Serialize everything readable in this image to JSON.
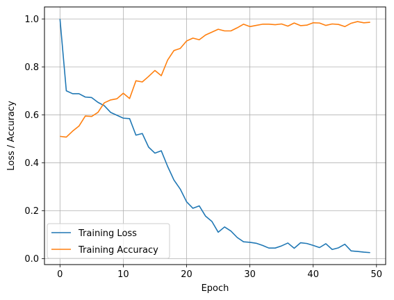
{
  "chart_data": {
    "type": "line",
    "title": "",
    "xlabel": "Epoch",
    "ylabel": "Loss / Accuracy",
    "xlim": [
      -2.45,
      51.45
    ],
    "ylim": [
      -0.025,
      1.05
    ],
    "xticks": [
      0,
      10,
      20,
      30,
      40,
      50
    ],
    "yticks": [
      0.0,
      0.2,
      0.4,
      0.6,
      0.8,
      1.0
    ],
    "xtick_labels": [
      "0",
      "10",
      "20",
      "30",
      "40",
      "50"
    ],
    "ytick_labels": [
      "0.0",
      "0.2",
      "0.4",
      "0.6",
      "0.8",
      "1.0"
    ],
    "grid": true,
    "legend_position": "lower-left",
    "x": [
      0,
      1,
      2,
      3,
      4,
      5,
      6,
      7,
      8,
      9,
      10,
      11,
      12,
      13,
      14,
      15,
      16,
      17,
      18,
      19,
      20,
      21,
      22,
      23,
      24,
      25,
      26,
      27,
      28,
      29,
      30,
      31,
      32,
      33,
      34,
      35,
      36,
      37,
      38,
      39,
      40,
      41,
      42,
      43,
      44,
      45,
      46,
      47,
      48,
      49
    ],
    "series": [
      {
        "name": "Training Loss",
        "color": "#1f77b4",
        "values": [
          1.0,
          0.7,
          0.688,
          0.688,
          0.674,
          0.672,
          0.652,
          0.638,
          0.61,
          0.598,
          0.586,
          0.584,
          0.515,
          0.522,
          0.465,
          0.44,
          0.45,
          0.385,
          0.328,
          0.29,
          0.237,
          0.21,
          0.22,
          0.177,
          0.155,
          0.11,
          0.132,
          0.115,
          0.088,
          0.07,
          0.068,
          0.064,
          0.055,
          0.044,
          0.044,
          0.053,
          0.065,
          0.043,
          0.066,
          0.063,
          0.055,
          0.046,
          0.062,
          0.038,
          0.045,
          0.06,
          0.032,
          0.03,
          0.027,
          0.025
        ]
      },
      {
        "name": "Training Accuracy",
        "color": "#ff7f0e",
        "values": [
          0.51,
          0.507,
          0.532,
          0.553,
          0.595,
          0.593,
          0.61,
          0.65,
          0.662,
          0.667,
          0.69,
          0.668,
          0.742,
          0.737,
          0.76,
          0.785,
          0.763,
          0.828,
          0.868,
          0.877,
          0.908,
          0.92,
          0.913,
          0.933,
          0.945,
          0.957,
          0.95,
          0.95,
          0.963,
          0.978,
          0.968,
          0.973,
          0.978,
          0.978,
          0.976,
          0.979,
          0.97,
          0.983,
          0.972,
          0.974,
          0.984,
          0.983,
          0.973,
          0.979,
          0.977,
          0.968,
          0.982,
          0.989,
          0.984,
          0.986
        ]
      }
    ]
  }
}
